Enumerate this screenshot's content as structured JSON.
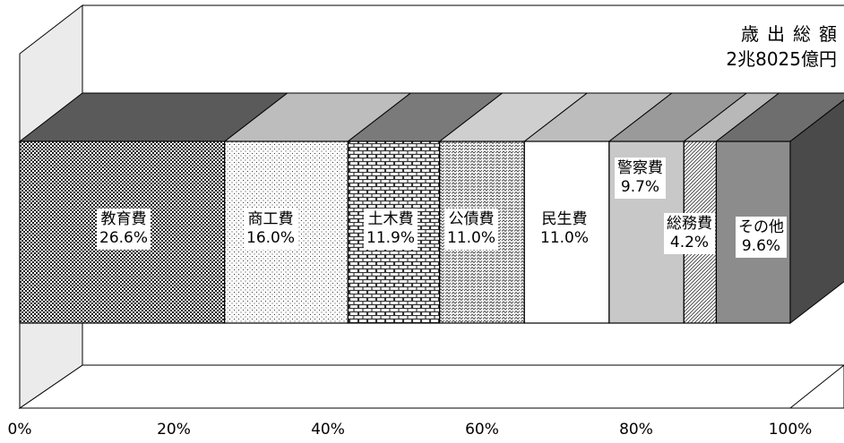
{
  "chart_data": {
    "type": "bar",
    "orientation": "horizontal-stacked-100",
    "three_d": true,
    "total_label": {
      "title": "歳出総額",
      "value": "2兆8025億円"
    },
    "categories": [
      "教育費",
      "商工費",
      "土木費",
      "公債費",
      "民生費",
      "警察費",
      "総務費",
      "その他"
    ],
    "values": [
      26.6,
      16.0,
      11.9,
      11.0,
      11.0,
      9.7,
      4.2,
      9.6
    ],
    "value_labels": [
      "26.6%",
      "16.0%",
      "11.9%",
      "11.0%",
      "11.0%",
      "9.7%",
      "4.2%",
      "9.6%"
    ],
    "x_ticks": [
      "0%",
      "20%",
      "40%",
      "60%",
      "80%",
      "100%"
    ],
    "xlim": [
      0,
      100
    ],
    "legend": "none",
    "grid": false
  }
}
